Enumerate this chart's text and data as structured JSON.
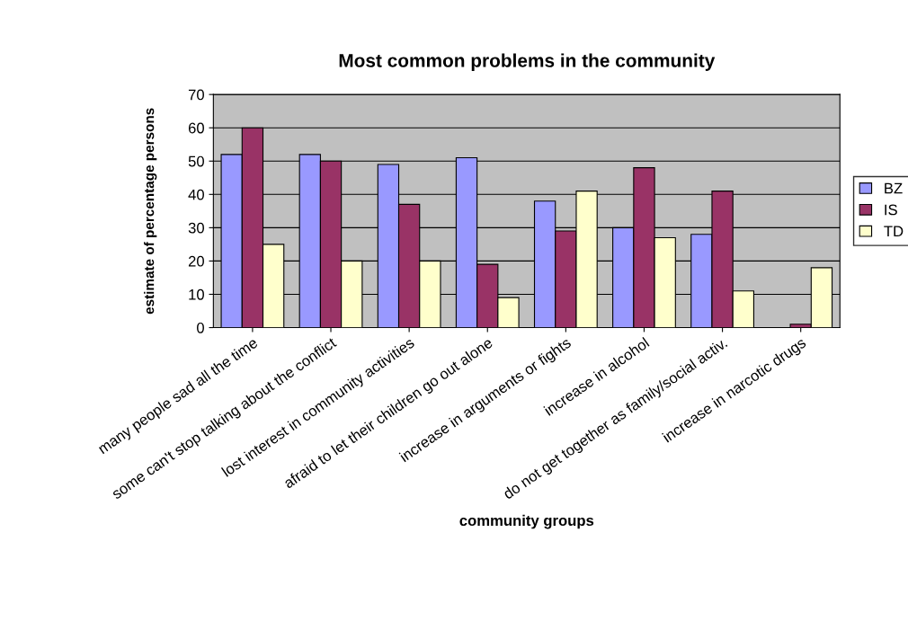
{
  "chart_data": {
    "type": "bar",
    "title": "Most common problems in the community",
    "xlabel": "community groups",
    "ylabel": "estimate of percentage persons",
    "categories": [
      "many people sad all the time",
      "some can't stop talking about the conflict",
      "lost interest in community activities",
      "afraid to let their children go out alone",
      "increase in arguments or fights",
      "increase in alcohol",
      "do not get together as family/social activ.",
      "increase in narcotic drugs"
    ],
    "series": [
      {
        "name": "BZ",
        "color": "#9999ff",
        "values": [
          52,
          52,
          49,
          51,
          38,
          30,
          28,
          null
        ]
      },
      {
        "name": "IS",
        "color": "#993366",
        "values": [
          60,
          50,
          37,
          19,
          29,
          48,
          41,
          1
        ]
      },
      {
        "name": "TD",
        "color": "#ffffcc",
        "values": [
          25,
          20,
          20,
          9,
          41,
          27,
          11,
          18
        ]
      }
    ],
    "ylim": [
      0,
      70
    ],
    "yticks": [
      0,
      10,
      20,
      30,
      40,
      50,
      60,
      70
    ],
    "grid": "y",
    "legend": "right"
  }
}
